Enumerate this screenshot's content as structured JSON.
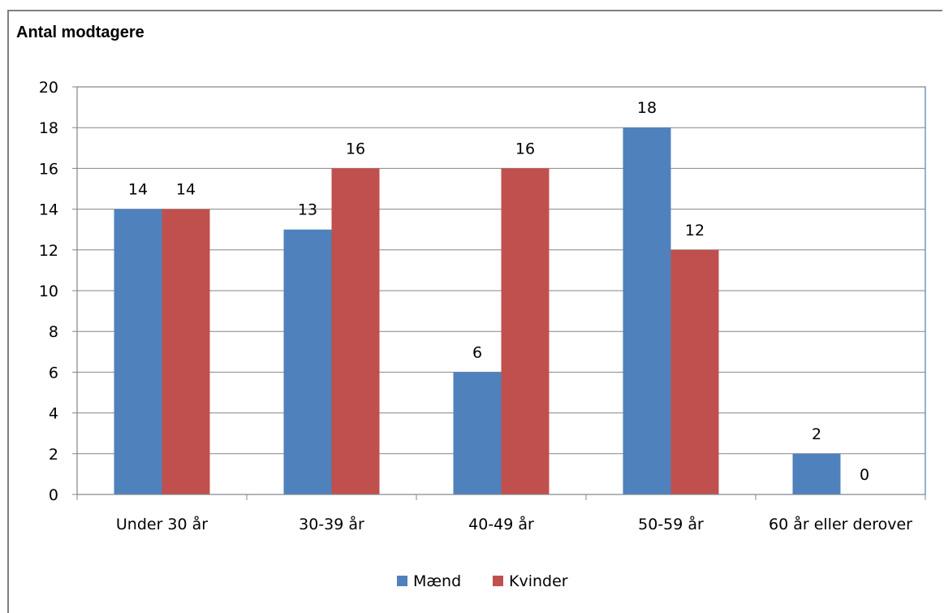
{
  "chart_data": {
    "type": "bar",
    "title": "Antal modtagere",
    "xlabel": "",
    "ylabel": "",
    "categories": [
      "Under 30 år",
      "30-39 år",
      "40-49 år",
      "50-59 år",
      "60 år eller derover"
    ],
    "series": [
      {
        "name": "Mænd",
        "values": [
          14,
          13,
          6,
          18,
          2
        ],
        "color": "#4f81bd"
      },
      {
        "name": "Kvinder",
        "values": [
          14,
          16,
          16,
          12,
          0
        ],
        "color": "#c0504d"
      }
    ],
    "ylim": [
      0,
      20
    ],
    "yticks": [
      0,
      2,
      4,
      6,
      8,
      10,
      12,
      14,
      16,
      18,
      20
    ],
    "grid": true,
    "legend": "bottom",
    "data_labels": true
  }
}
